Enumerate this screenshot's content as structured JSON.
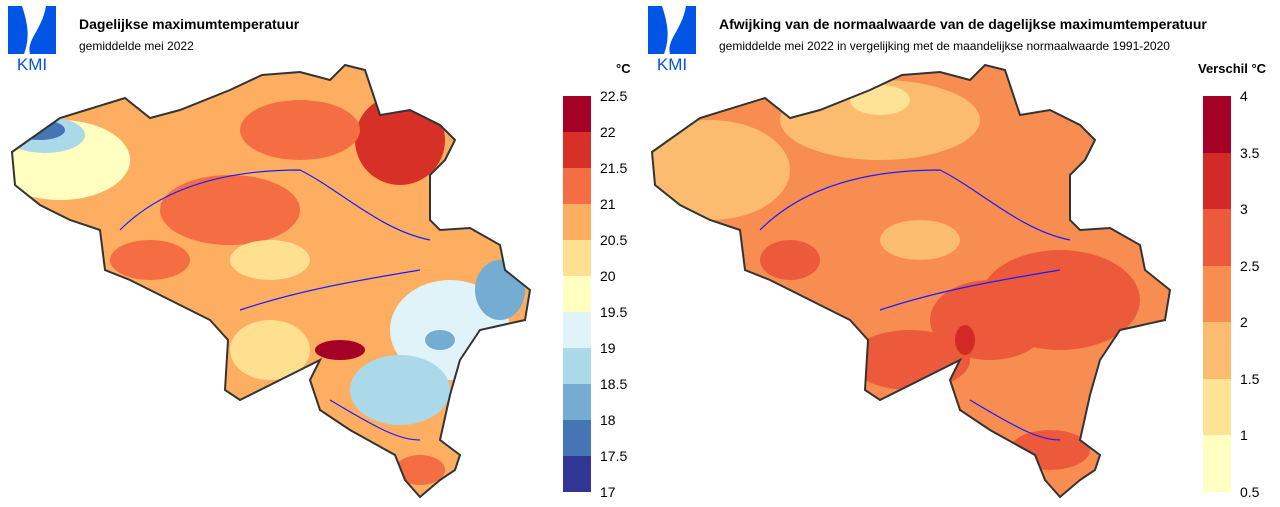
{
  "logo_text": "KMI",
  "left": {
    "title": "Dagelijkse maximumtemperatuur",
    "subtitle": "gemiddelde mei 2022",
    "legend_title": "°C",
    "legend_ticks": [
      "22.5",
      "22",
      "21.5",
      "21",
      "20.5",
      "20",
      "19.5",
      "19",
      "18.5",
      "18",
      "17.5",
      "17"
    ],
    "legend_colors": [
      "#a50026",
      "#d73027",
      "#f46d43",
      "#fdae61",
      "#fee090",
      "#ffffbf",
      "#e0f3f8",
      "#abd9e9",
      "#74add1",
      "#4575b4",
      "#313695"
    ]
  },
  "right": {
    "title": "Afwijking van de normaalwaarde van de dagelijkse maximumtemperatuur",
    "subtitle": "gemiddelde mei 2022 in vergelijking met de maandelijkse normaalwaarde 1991-2020",
    "legend_title": "Verschil °C",
    "legend_ticks": [
      "4",
      "3.5",
      "3",
      "2.5",
      "2",
      "1.5",
      "1",
      "0.5"
    ],
    "legend_colors": [
      "#a50026",
      "#d32a27",
      "#ec5a3b",
      "#f88d52",
      "#fbbc6f",
      "#fee395",
      "#ffffc2"
    ]
  }
}
